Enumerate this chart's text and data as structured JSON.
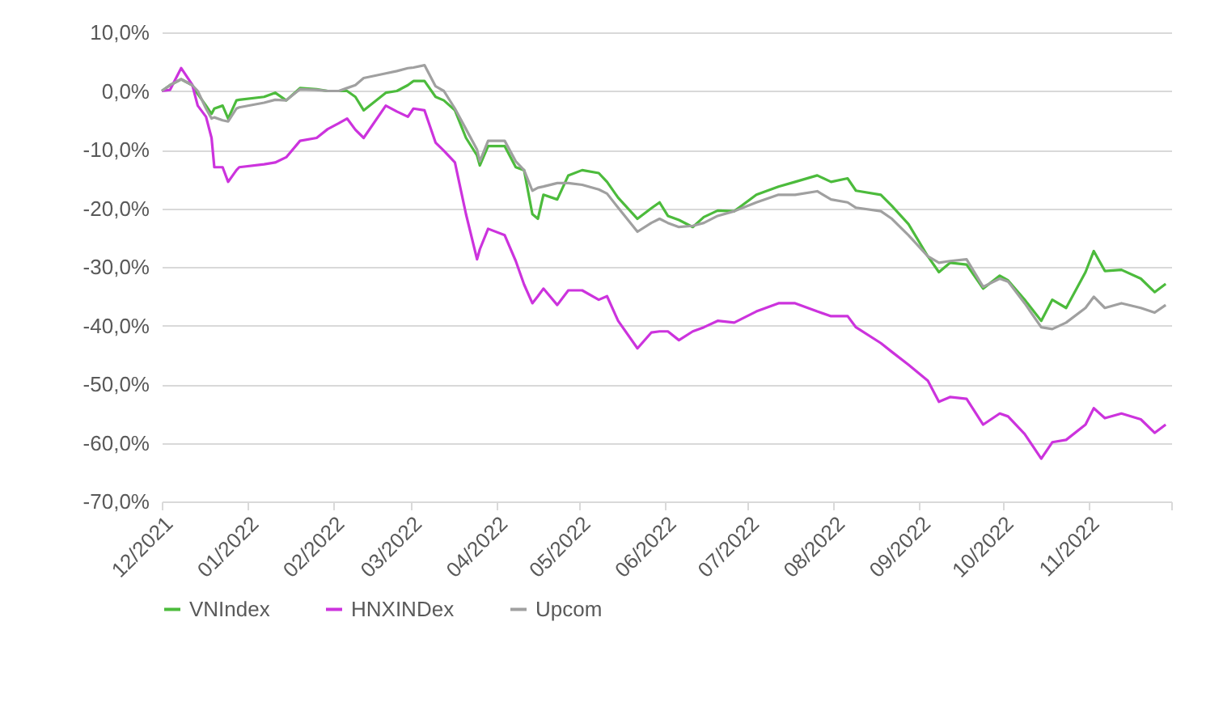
{
  "chart_data": {
    "type": "line",
    "x": [
      "2021-12-01",
      "2021-12-04",
      "2021-12-08",
      "2021-12-12",
      "2021-12-14",
      "2021-12-17",
      "2021-12-19",
      "2021-12-20",
      "2021-12-23",
      "2021-12-25",
      "2021-12-28",
      "2021-12-29",
      "2022-01-07",
      "2022-01-11",
      "2022-01-15",
      "2022-01-20",
      "2022-01-26",
      "2022-01-30",
      "2022-02-03",
      "2022-02-06",
      "2022-02-09",
      "2022-02-12",
      "2022-02-20",
      "2022-02-24",
      "2022-02-28",
      "2022-03-02",
      "2022-03-06",
      "2022-03-10",
      "2022-03-13",
      "2022-03-17",
      "2022-03-21",
      "2022-03-25",
      "2022-03-26",
      "2022-03-29",
      "2022-04-04",
      "2022-04-08",
      "2022-04-11",
      "2022-04-14",
      "2022-04-16",
      "2022-04-18",
      "2022-04-23",
      "2022-04-27",
      "2022-05-02",
      "2022-05-08",
      "2022-05-11",
      "2022-05-15",
      "2022-05-22",
      "2022-05-27",
      "2022-05-30",
      "2022-06-02",
      "2022-06-06",
      "2022-06-11",
      "2022-06-15",
      "2022-06-20",
      "2022-06-26",
      "2022-07-04",
      "2022-07-12",
      "2022-07-18",
      "2022-07-26",
      "2022-07-31",
      "2022-08-06",
      "2022-08-09",
      "2022-08-18",
      "2022-08-22",
      "2022-08-28",
      "2022-09-04",
      "2022-09-08",
      "2022-09-12",
      "2022-09-18",
      "2022-09-24",
      "2022-09-30",
      "2022-10-03",
      "2022-10-09",
      "2022-10-15",
      "2022-10-19",
      "2022-10-24",
      "2022-10-31",
      "2022-11-03",
      "2022-11-07",
      "2022-11-13",
      "2022-11-20",
      "2022-11-25",
      "2022-11-29"
    ],
    "series": [
      {
        "name": "VNIndex",
        "color": "#4cbb3c",
        "values": [
          0,
          1,
          2,
          1,
          -0.5,
          -2.5,
          -3.9,
          -3,
          -2.5,
          -4.7,
          -1.6,
          -1.5,
          -1,
          -0.3,
          -1.6,
          0.5,
          0.3,
          0,
          0,
          0,
          -1,
          -3.3,
          -0.3,
          0,
          1,
          1.7,
          1.7,
          -1,
          -1.6,
          -3.3,
          -8,
          -11,
          -12.7,
          -9.4,
          -9.4,
          -13,
          -13.5,
          -21,
          -21.8,
          -17.7,
          -18.5,
          -14.4,
          -13.5,
          -14,
          -15.5,
          -18.2,
          -21.8,
          -20,
          -19,
          -21.3,
          -22,
          -23.2,
          -21.5,
          -20.4,
          -20.5,
          -17.7,
          -16.3,
          -15.5,
          -14.4,
          -15.5,
          -14.9,
          -17,
          -17.7,
          -19.6,
          -22.7,
          -28.2,
          -30.9,
          -29.3,
          -29.6,
          -33.7,
          -31.5,
          -32.3,
          -35.6,
          -39.2,
          -35.6,
          -37,
          -30.9,
          -27.3,
          -30.7,
          -30.5,
          -32,
          -34.3,
          -32.9
        ]
      },
      {
        "name": "HNXINDex",
        "color": "#cc33dd",
        "values": [
          0,
          0.2,
          3.9,
          1.1,
          -2.5,
          -4.4,
          -8,
          -13,
          -13,
          -15.5,
          -13.5,
          -13,
          -12.5,
          -12.2,
          -11.3,
          -8.5,
          -8,
          -6.5,
          -5.5,
          -4.7,
          -6.6,
          -8,
          -2.5,
          -3.5,
          -4.4,
          -3,
          -3.3,
          -8.8,
          -10.2,
          -12.2,
          -21,
          -28.7,
          -27,
          -23.5,
          -24.6,
          -29,
          -33,
          -36.2,
          -35,
          -33.7,
          -36.5,
          -34,
          -34,
          -35.6,
          -35,
          -39.2,
          -43.9,
          -41.2,
          -41,
          -41,
          -42.5,
          -41,
          -40.3,
          -39.2,
          -39.5,
          -37.6,
          -36.2,
          -36.2,
          -37.6,
          -38.4,
          -38.4,
          -40.3,
          -43,
          -44.5,
          -46.7,
          -49.4,
          -53,
          -52.2,
          -52.5,
          -56.9,
          -55,
          -55.5,
          -58.5,
          -62.7,
          -59.9,
          -59.5,
          -56.9,
          -54.1,
          -55.8,
          -55,
          -56,
          -58.3,
          -56.9
        ]
      },
      {
        "name": "Upcom",
        "color": "#a0a0a0",
        "values": [
          0,
          1,
          2,
          1,
          0,
          -3,
          -4.7,
          -4.5,
          -5,
          -5.2,
          -3,
          -2.8,
          -2,
          -1.5,
          -1.6,
          0.3,
          0.2,
          0,
          0,
          0.5,
          1,
          2.2,
          3,
          3.4,
          3.9,
          4,
          4.4,
          0.8,
          0,
          -3,
          -6.5,
          -10,
          -12,
          -8.5,
          -8.5,
          -12,
          -13.5,
          -17,
          -16.5,
          -16.3,
          -15.7,
          -15.7,
          -16,
          -16.8,
          -17.5,
          -19.9,
          -24,
          -22.5,
          -21.8,
          -22.5,
          -23.2,
          -23,
          -22.5,
          -21.3,
          -20.5,
          -19,
          -17.7,
          -17.7,
          -17.1,
          -18.5,
          -19,
          -19.9,
          -20.5,
          -21.8,
          -24.6,
          -28.2,
          -29.3,
          -29,
          -28.7,
          -33.4,
          -32,
          -32.5,
          -36.2,
          -40.3,
          -40.6,
          -39.5,
          -37,
          -35.1,
          -37,
          -36.2,
          -37,
          -37.8,
          -36.5
        ]
      }
    ],
    "xlim": [
      "2021-12-01",
      "2022-12-01"
    ],
    "xticks": [
      {
        "value": "2021-12-01",
        "label": "12/2021"
      },
      {
        "value": "2022-01-01",
        "label": "01/2022"
      },
      {
        "value": "2022-02-01",
        "label": "02/2022"
      },
      {
        "value": "2022-03-01",
        "label": "03/2022"
      },
      {
        "value": "2022-04-01",
        "label": "04/2022"
      },
      {
        "value": "2022-05-01",
        "label": "05/2022"
      },
      {
        "value": "2022-06-01",
        "label": "06/2022"
      },
      {
        "value": "2022-07-01",
        "label": "07/2022"
      },
      {
        "value": "2022-08-01",
        "label": "08/2022"
      },
      {
        "value": "2022-09-01",
        "label": "09/2022"
      },
      {
        "value": "2022-10-01",
        "label": "10/2022"
      },
      {
        "value": "2022-11-01",
        "label": "11/2022"
      },
      {
        "value": "2022-12-01",
        "label": null
      }
    ],
    "ylim": [
      -70,
      10
    ],
    "yticks": [
      {
        "value": 10,
        "label": "10,0%"
      },
      {
        "value": 0,
        "label": "0,0%"
      },
      {
        "value": -10,
        "label": "-10,0%"
      },
      {
        "value": -20,
        "label": "-20,0%"
      },
      {
        "value": -30,
        "label": "-30,0%"
      },
      {
        "value": -40,
        "label": "-40,0%"
      },
      {
        "value": -50,
        "label": "-50,0%"
      },
      {
        "value": -60,
        "label": "-60,0%"
      },
      {
        "value": -70,
        "label": "-70,0%"
      }
    ],
    "grid": "y",
    "legend": "bottom"
  }
}
